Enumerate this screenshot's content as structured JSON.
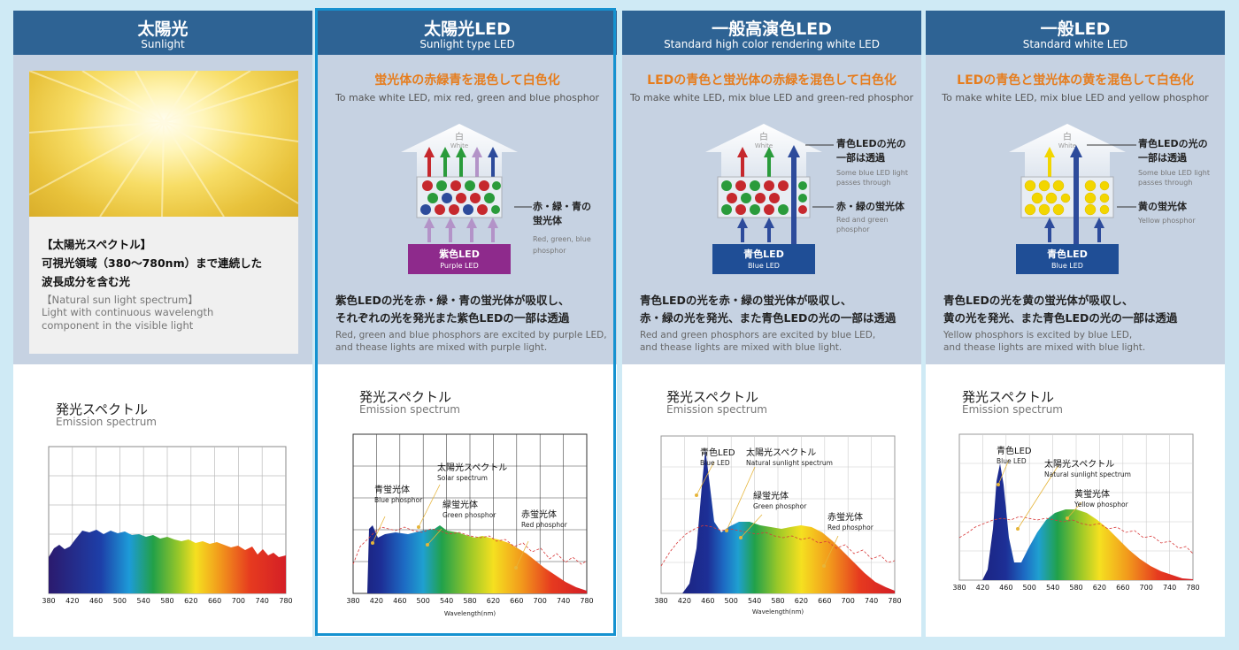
{
  "columns": [
    {
      "title_jp": "太陽光",
      "title_en": "Sunlight",
      "spectrum_title_jp": "【太陽光スペクトル】",
      "spectrum_desc_jp1": "可視光領域（380〜780nm）まで連続した",
      "spectrum_desc_jp2": "波長成分を含む光",
      "spectrum_title_en": "【Natural sun light spectrum】",
      "spectrum_desc_en1": "Light with  continuous  wavelength",
      "spectrum_desc_en2": "component  in  the  visible  light",
      "emission_jp": "発光スペクトル",
      "emission_en": "Emission spectrum"
    },
    {
      "title_jp": "太陽光LED",
      "title_en": "Sunlight type LED",
      "mix_jp": "蛍光体の赤緑青を混色して白色化",
      "mix_en": "To make white LED, mix red, green and blue phosphor",
      "white_jp": "白",
      "white_en": "White",
      "phosphor_jp1": "赤・緑・青の",
      "phosphor_jp2": "蛍光体",
      "phosphor_en1": "Red, green, blue",
      "phosphor_en2": "phosphor",
      "led_jp": "紫色LED",
      "led_en": "Purple LED",
      "desc_jp1": "紫色LEDの光を赤・緑・青の蛍光体が吸収し、",
      "desc_jp2": "それぞれの光を発光また紫色LEDの一部は透過",
      "desc_en1": "Red, green and blue phosphors are excited by purple LED,",
      "desc_en2": "and thease lights are mixed with purple light.",
      "emission_jp": "発光スペクトル",
      "emission_en": "Emission spectrum",
      "c_solar_jp": "太陽光スペクトル",
      "c_solar_en": "Solar spectrum",
      "c_blue_jp": "青蛍光体",
      "c_blue_en": "Blue phosphor",
      "c_green_jp": "緑蛍光体",
      "c_green_en": "Green phosphor",
      "c_red_jp": "赤蛍光体",
      "c_red_en": "Red phosphor",
      "xlabel": "Wavelength(nm)"
    },
    {
      "title_jp": "一般高演色LED",
      "title_en": "Standard high color rendering white LED",
      "mix_jp": "LEDの青色と蛍光体の赤緑を混色して白色化",
      "mix_en": "To make white LED, mix blue LED and green-red phosphor",
      "white_jp": "白",
      "white_en": "White",
      "pass_jp1": "青色LEDの光の",
      "pass_jp2": "一部は透過",
      "pass_en1": "Some blue LED light",
      "pass_en2": "passes through",
      "phosphor_jp": "赤・緑の蛍光体",
      "phosphor_en1": "Red and green",
      "phosphor_en2": "phosphor",
      "led_jp": "青色LED",
      "led_en": "Blue LED",
      "desc_jp1": "青色LEDの光を赤・緑の蛍光体が吸収し、",
      "desc_jp2": "赤・緑の光を発光、また青色LEDの光の一部は透過",
      "desc_en1": "Red and green phosphors are excited by blue LED,",
      "desc_en2": "and thease lights are mixed with blue light.",
      "emission_jp": "発光スペクトル",
      "emission_en": "Emission spectrum",
      "c_blue_jp": "青色LED",
      "c_blue_en": "Blue LED",
      "c_solar_jp": "太陽光スペクトル",
      "c_solar_en": "Natural sunlight spectrum",
      "c_green_jp": "緑蛍光体",
      "c_green_en": "Green phosphor",
      "c_red_jp": "赤蛍光体",
      "c_red_en": "Red phosphor",
      "xlabel": "Wavelength(nm)"
    },
    {
      "title_jp": "一般LED",
      "title_en": "Standard white LED",
      "mix_jp": "LEDの青色と蛍光体の黄を混色して白色化",
      "mix_en": "To make white LED, mix blue LED and yellow phosphor",
      "white_jp": "白",
      "white_en": "White",
      "pass_jp1": "青色LEDの光の",
      "pass_jp2": "一部は透過",
      "pass_en1": "Some blue LED light",
      "pass_en2": "passes through",
      "phosphor_jp": "黄の蛍光体",
      "phosphor_en": "Yellow phosphor",
      "led_jp": "青色LED",
      "led_en": "Blue LED",
      "desc_jp1": "青色LEDの光を黄の蛍光体が吸収し、",
      "desc_jp2": "黄の光を発光、また青色LEDの光の一部は透過",
      "desc_en1": "Yellow phosphors is excited by blue LED,",
      "desc_en2": "and thease lights are mixed with blue light.",
      "emission_jp": "発光スペクトル",
      "emission_en": "Emission spectrum",
      "c_blue_jp": "青色LED",
      "c_blue_en": "Blue LED",
      "c_solar_jp": "太陽光スペクトル",
      "c_solar_en": "Natural sunlight spectrum",
      "c_yellow_jp": "黄蛍光体",
      "c_yellow_en": "Yellow phosphor"
    }
  ],
  "x_ticks": [
    "380",
    "420",
    "460",
    "500",
    "540",
    "580",
    "620",
    "660",
    "700",
    "740",
    "780"
  ],
  "colors": {
    "header": "#2e6394",
    "highlight": "#1592d0",
    "accent": "#e67d1e",
    "purple_led": "#8e2a8c",
    "blue_led": "#1f4e96"
  }
}
